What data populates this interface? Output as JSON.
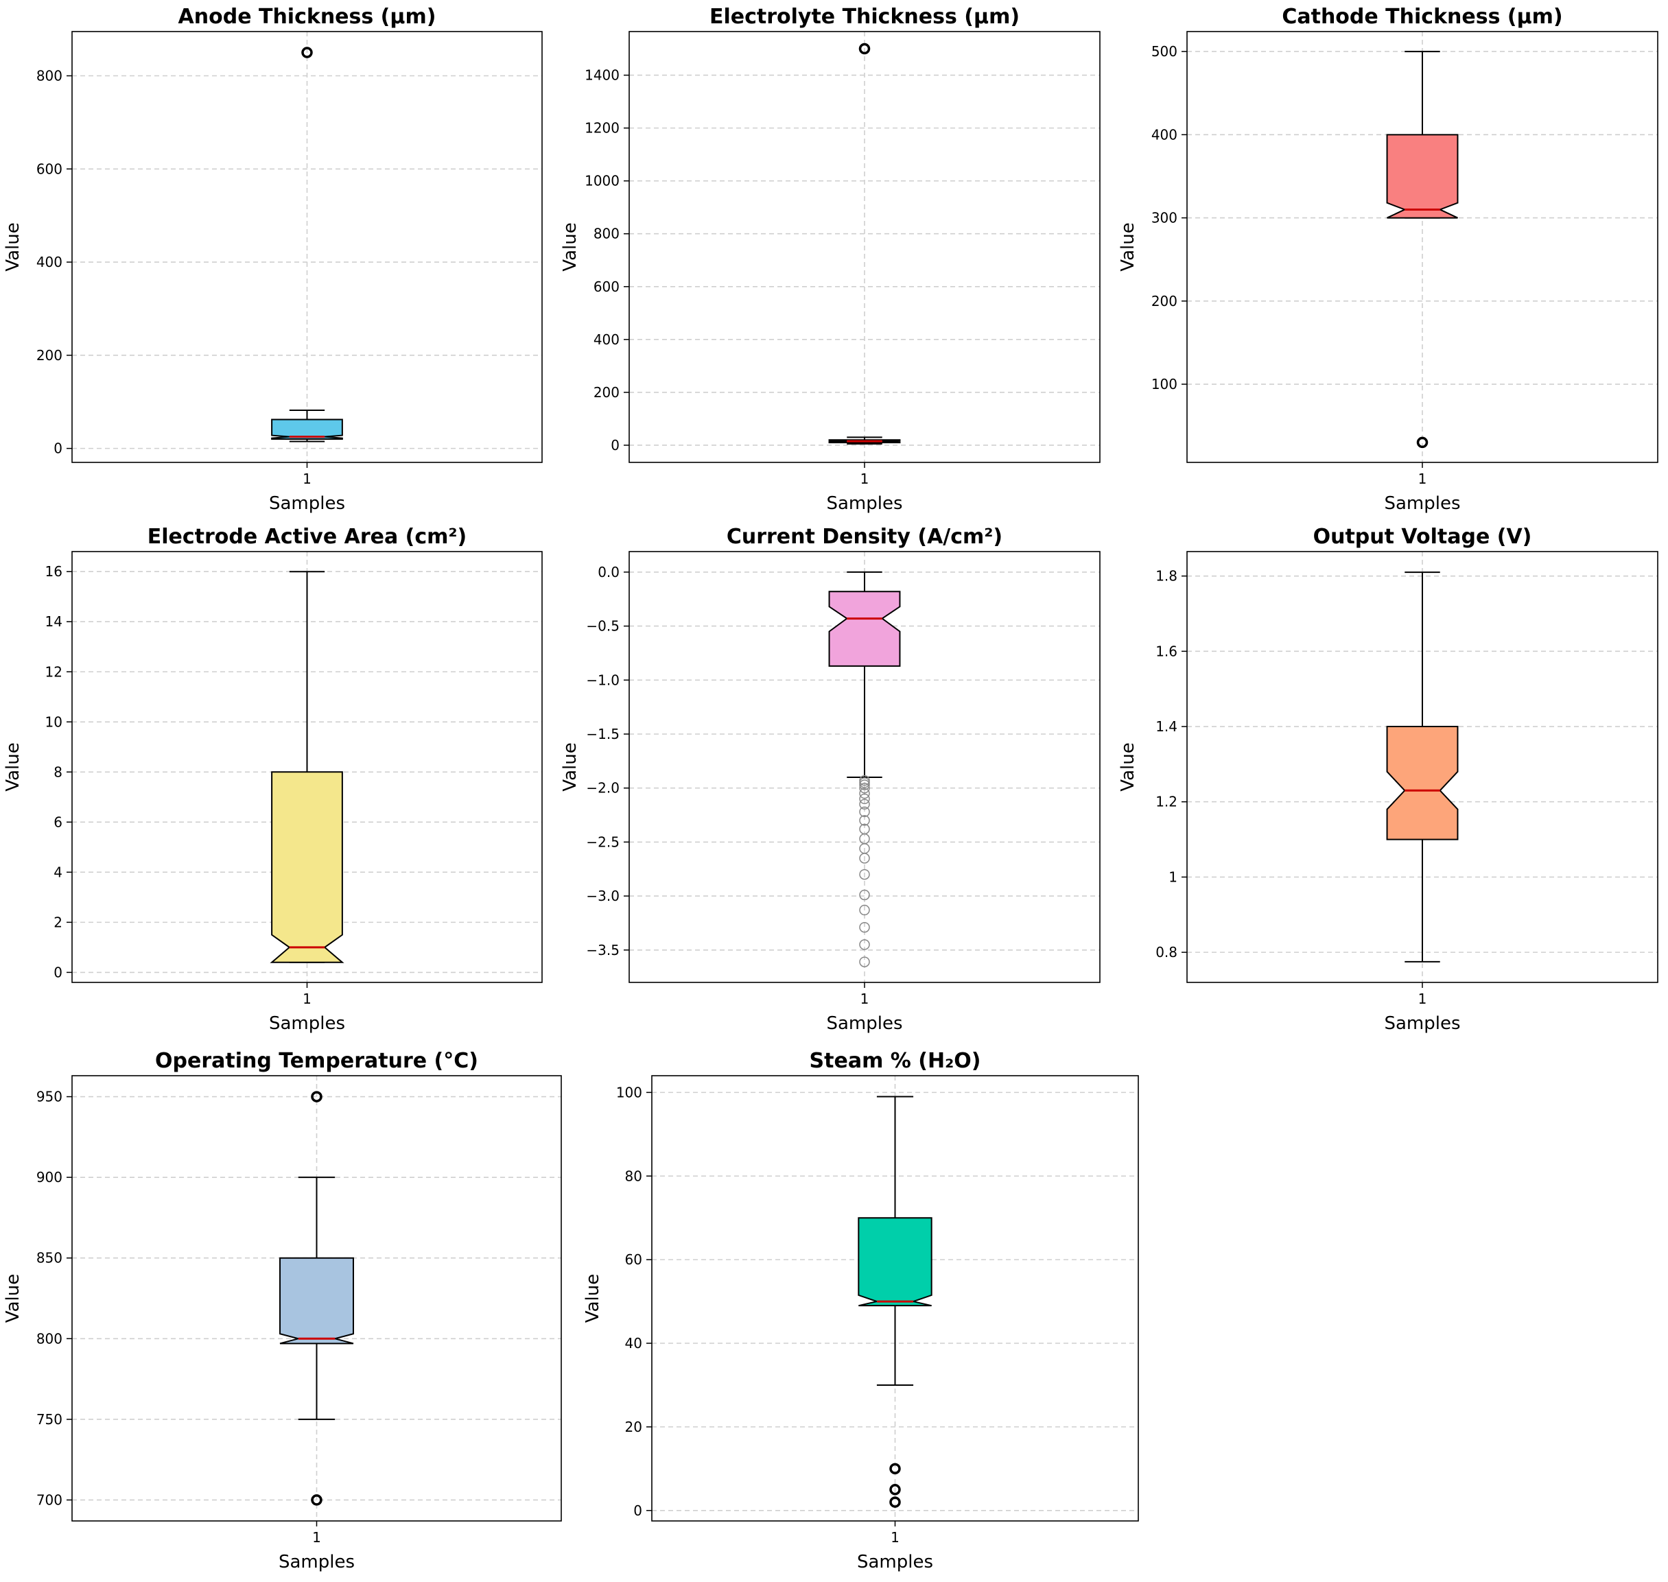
{
  "figure": {
    "background": "#ffffff"
  },
  "chart_data": [
    {
      "type": "boxplot",
      "title": "Anode Thickness (μm)",
      "xlabel": "Samples",
      "ylabel": "Value",
      "category": "1",
      "color": "#5ec8ea",
      "ylim": [
        -30,
        895
      ],
      "yticks": [
        0,
        200,
        400,
        600,
        800
      ],
      "box": {
        "whisker_low": 15,
        "q1": 20,
        "median": 25,
        "q3": 62,
        "whisker_high": 82,
        "notch_low": 22,
        "notch_high": 28
      },
      "outliers": [
        850
      ],
      "outlier_style": "bold"
    },
    {
      "type": "boxplot",
      "title": "Electrolyte Thickness (μm)",
      "xlabel": "Samples",
      "ylabel": "Value",
      "category": "1",
      "color": "#5ec8ea",
      "ylim": [
        -65,
        1565
      ],
      "yticks": [
        0,
        200,
        400,
        600,
        800,
        1000,
        1200,
        1400
      ],
      "box": {
        "whisker_low": 5,
        "q1": 10,
        "median": 15,
        "q3": 20,
        "whisker_high": 30,
        "notch_low": 13,
        "notch_high": 17
      },
      "outliers": [
        1500
      ],
      "outlier_style": "bold"
    },
    {
      "type": "boxplot",
      "title": "Cathode Thickness (μm)",
      "xlabel": "Samples",
      "ylabel": "Value",
      "category": "1",
      "color": "#f98080",
      "ylim": [
        6,
        524
      ],
      "yticks": [
        100,
        200,
        300,
        400,
        500
      ],
      "box": {
        "whisker_low": 300,
        "q1": 300,
        "median": 310,
        "q3": 400,
        "whisker_high": 500,
        "notch_low": 300,
        "notch_high": 318
      },
      "outliers": [
        30
      ],
      "outlier_style": "bold"
    },
    {
      "type": "boxplot",
      "title": "Electrode Active Area (cm²)",
      "xlabel": "Samples",
      "ylabel": "Value",
      "category": "1",
      "color": "#f4e78c",
      "ylim": [
        -0.4,
        16.8
      ],
      "yticks": [
        0,
        2,
        4,
        6,
        8,
        10,
        12,
        14,
        16
      ],
      "box": {
        "whisker_low": 0.4,
        "q1": 0.4,
        "median": 1.0,
        "q3": 8.0,
        "whisker_high": 16.0,
        "notch_low": 0.4,
        "notch_high": 1.5
      },
      "outliers": [],
      "outlier_style": "bold"
    },
    {
      "type": "boxplot",
      "title": "Current Density (A/cm²)",
      "xlabel": "Samples",
      "ylabel": "Value",
      "category": "1",
      "color": "#f1a4dc",
      "ylim": [
        -3.8,
        0.19
      ],
      "yticks": [
        0.0,
        -0.5,
        -1.0,
        -1.5,
        -2.0,
        -2.5,
        -3.0,
        -3.5
      ],
      "ytick_labels": [
        "0.0",
        "−0.5",
        "−1.0",
        "−1.5",
        "−2.0",
        "−2.5",
        "−3.0",
        "−3.5"
      ],
      "box": {
        "whisker_low": -1.9,
        "q1": -0.87,
        "median": -0.43,
        "q3": -0.18,
        "whisker_high": 0.0,
        "notch_low": -0.55,
        "notch_high": -0.32
      },
      "outliers": [
        -1.93,
        -1.95,
        -1.97,
        -2.0,
        -2.05,
        -2.1,
        -2.15,
        -2.22,
        -2.3,
        -2.38,
        -2.47,
        -2.56,
        -2.65,
        -2.8,
        -2.99,
        -3.13,
        -3.29,
        -3.45,
        -3.61
      ],
      "outlier_style": "light"
    },
    {
      "type": "boxplot",
      "title": "Output Voltage (V)",
      "xlabel": "Samples",
      "ylabel": "Value",
      "category": "1",
      "color": "#fda57a",
      "ylim": [
        0.72,
        1.865
      ],
      "yticks": [
        0.8,
        1.0,
        1.2,
        1.4,
        1.6,
        1.8
      ],
      "box": {
        "whisker_low": 0.775,
        "q1": 1.1,
        "median": 1.23,
        "q3": 1.4,
        "whisker_high": 1.81,
        "notch_low": 1.18,
        "notch_high": 1.28
      },
      "outliers": [],
      "outlier_style": "bold"
    },
    {
      "type": "boxplot",
      "title": "Operating Temperature (°C)",
      "xlabel": "Samples",
      "ylabel": "Value",
      "category": "1",
      "color": "#a8c4e0",
      "ylim": [
        687,
        963
      ],
      "yticks": [
        700,
        750,
        800,
        850,
        900,
        950
      ],
      "box": {
        "whisker_low": 750,
        "q1": 797,
        "median": 800,
        "q3": 850,
        "whisker_high": 900,
        "notch_low": 797,
        "notch_high": 803
      },
      "outliers": [
        950,
        700
      ],
      "outlier_style": "bold"
    },
    {
      "type": "boxplot",
      "title": "Steam % (H₂O)",
      "xlabel": "Samples",
      "ylabel": "Value",
      "category": "1",
      "color": "#00cfaa",
      "ylim": [
        -2.5,
        104
      ],
      "yticks": [
        0,
        20,
        40,
        60,
        80,
        100
      ],
      "box": {
        "whisker_low": 30,
        "q1": 49,
        "median": 50,
        "q3": 70,
        "whisker_high": 99,
        "notch_low": 48.5,
        "notch_high": 51.5
      },
      "outliers": [
        10,
        5,
        2
      ],
      "outlier_style": "bold"
    }
  ]
}
